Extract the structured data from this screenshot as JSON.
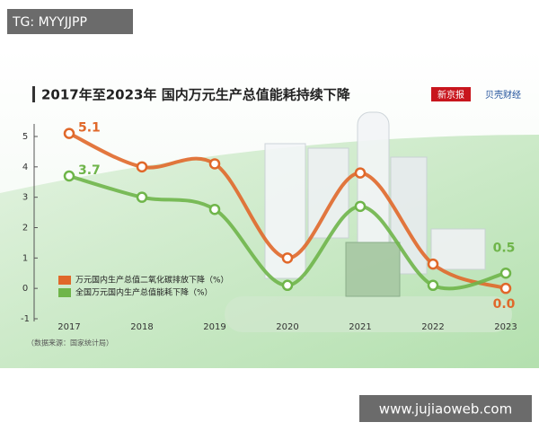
{
  "watermark": "TG: MYYJJPP",
  "site": "www.jujiaoweb.com",
  "logos": [
    "新京报",
    "贝壳财经"
  ],
  "chart_data": {
    "type": "line",
    "title": "2017年至2023年 国内万元生产总值能耗持续下降",
    "source": "（数据来源：国家统计局）",
    "categories": [
      "2017",
      "2018",
      "2019",
      "2020",
      "2021",
      "2022",
      "2023"
    ],
    "series": [
      {
        "name": "万元国内生产总值二氧化碳排放下降（%）",
        "color": "#e0682a",
        "values": [
          5.1,
          4.0,
          4.1,
          1.0,
          3.8,
          0.8,
          0.0
        ],
        "value_labels": [
          "5.1",
          null,
          null,
          null,
          null,
          null,
          "0.0"
        ]
      },
      {
        "name": "全国万元国内生产总值能耗下降（%）",
        "color": "#6fb54a",
        "values": [
          3.7,
          3.0,
          2.6,
          0.1,
          2.7,
          0.1,
          0.5
        ],
        "value_labels": [
          "3.7",
          null,
          null,
          null,
          null,
          null,
          "0.5"
        ]
      }
    ],
    "ylim": [
      -1,
      5
    ],
    "yticks": [
      -1,
      0,
      1,
      2,
      3,
      4,
      5
    ],
    "legend": "lower-left"
  }
}
